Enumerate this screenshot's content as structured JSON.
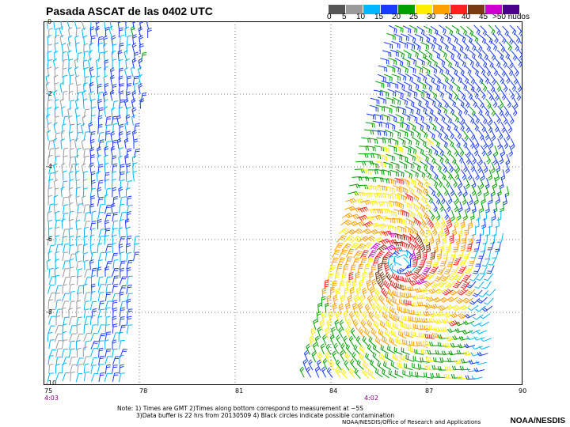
{
  "title": "Pasada ASCAT de las 0402 UTC",
  "scale": {
    "labels": [
      "0",
      "5",
      "10",
      "15",
      "20",
      "25",
      "30",
      "35",
      "40",
      "45",
      ">50 nudos"
    ],
    "colors": [
      "#555555",
      "#9a9a9a",
      "#00b7ff",
      "#1a3cff",
      "#00a000",
      "#ffee00",
      "#ffa000",
      "#ff2020",
      "#7a3a10",
      "#d000d0",
      "#4a008a"
    ]
  },
  "axes": {
    "x_ticks": [
      "75",
      "78",
      "81",
      "84",
      "87",
      "90"
    ],
    "y_ticks": [
      "0",
      "-2",
      "-4",
      "-6",
      "-8",
      "-10"
    ]
  },
  "times": {
    "left": "4:03",
    "center": "4:02"
  },
  "notes": {
    "line1": "Note: 1) Times are GMT 2)Times along bottom correspond to measurement at ~5S",
    "line2": "3)Data buffer is 22 hrs from 20130509 4) Black circles indicate possible contamination",
    "source": "NOAA/NESDIS/Office of Research and Applications",
    "logo": "NOAA/NESDIS"
  },
  "map": {
    "lon_range": [
      75,
      90
    ],
    "lat_range": [
      -10,
      0
    ],
    "cyclone_center": {
      "lon": 86.2,
      "lat": -6.6
    }
  }
}
